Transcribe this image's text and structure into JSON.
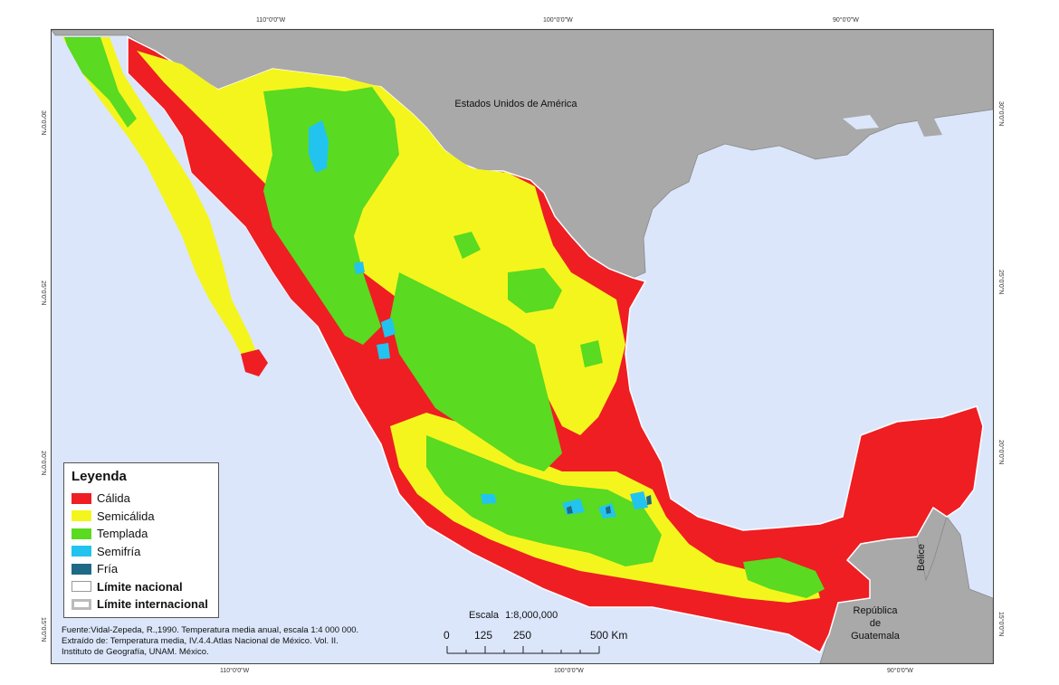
{
  "graticule": {
    "top": [
      "110°0'0\"W",
      "100°0'0\"W",
      "90°0'0\"W"
    ],
    "bottom": [
      "110°0'0\"W",
      "100°0'0\"W",
      "90°0'0\"W"
    ],
    "left": [
      "30°0'0\"N",
      "25°0'0\"N",
      "20°0'0\"N",
      "15°0'0\"N"
    ],
    "right": [
      "30°0'0\"N",
      "25°0'0\"N",
      "20°0'0\"N",
      "15°0'0\"N"
    ]
  },
  "countries": {
    "usa": "Estados Unidos de América",
    "belize": "Belice",
    "guatemala_line1": "República",
    "guatemala_line2": "de",
    "guatemala_line3": "Guatemala"
  },
  "legend": {
    "title": "Leyenda",
    "items": [
      {
        "label": "Cálida",
        "color": "#ee1e23"
      },
      {
        "label": "Semicálida",
        "color": "#f5f51e"
      },
      {
        "label": "Templada",
        "color": "#5ada20"
      },
      {
        "label": "Semifría",
        "color": "#22c4ef"
      },
      {
        "label": "Fría",
        "color": "#1e6a86"
      },
      {
        "label": "Límite nacional",
        "color": "#ffffff"
      },
      {
        "label": "Límite internacional",
        "color": "#bbbbbb"
      }
    ]
  },
  "scale": {
    "title": "Escala",
    "ratio": "1:8,000,000",
    "ticks": [
      "0",
      "125",
      "250",
      "500 Km"
    ]
  },
  "source": [
    "Fuente:Vidal-Zepeda, R.,1990. Temperatura media anual, escala 1:4 000 000.",
    "Extraído de: Temperatura media, IV.4.4.Atlas Nacional de México. Vol. II.",
    "Instituto de Geografía, UNAM. México."
  ],
  "colors": {
    "ocean": "#dbe6fb",
    "foreign_land": "#a9a9a9",
    "calida": "#ee1e23",
    "semicalida": "#f5f51e",
    "templada": "#5ada20",
    "semifria": "#22c4ef",
    "fria": "#1e6a86"
  }
}
